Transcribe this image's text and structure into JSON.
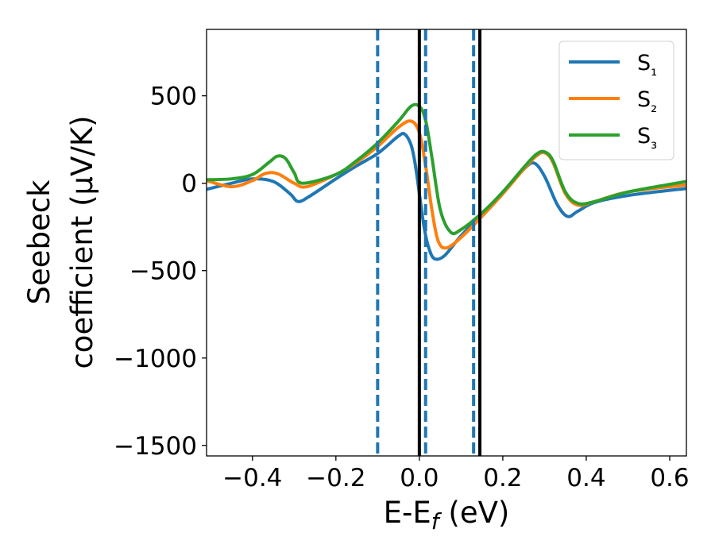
{
  "chart_data": {
    "type": "line",
    "xlabel": "E-E_f (eV)",
    "ylabel": "Seebeck coefficient (μV/K)",
    "ylabel_lines": [
      "Seebeck",
      "coefficient (μV/K)"
    ],
    "xlim": [
      -0.51,
      0.64
    ],
    "ylim": [
      -1560,
      880
    ],
    "xticks": [
      -0.4,
      -0.2,
      0.0,
      0.2,
      0.4,
      0.6
    ],
    "xtick_labels": [
      "−0.4",
      "−0.2",
      "0.0",
      "0.2",
      "0.4",
      "0.6"
    ],
    "yticks": [
      500,
      0,
      -500,
      -1000,
      -1500
    ],
    "ytick_labels": [
      "500",
      "0",
      "−500",
      "−1000",
      "−1500"
    ],
    "grid": false,
    "legend_position": "top-right",
    "series": [
      {
        "name": "S₁",
        "color": "#1f77b4",
        "x": [
          -0.51,
          -0.45,
          -0.4,
          -0.35,
          -0.31,
          -0.29,
          -0.26,
          -0.2,
          -0.15,
          -0.1,
          -0.05,
          -0.035,
          -0.02,
          -0.01,
          0.0,
          0.01,
          0.02,
          0.035,
          0.06,
          0.1,
          0.15,
          0.2,
          0.25,
          0.275,
          0.3,
          0.33,
          0.355,
          0.38,
          0.42,
          0.5,
          0.64
        ],
        "y": [
          -35,
          0,
          25,
          10,
          -60,
          -105,
          -70,
          25,
          100,
          170,
          270,
          280,
          220,
          110,
          -60,
          -230,
          -350,
          -430,
          -415,
          -300,
          -180,
          -50,
          80,
          115,
          40,
          -120,
          -190,
          -160,
          -110,
          -70,
          -30
        ]
      },
      {
        "name": "S₂",
        "color": "#ff7f0e",
        "x": [
          -0.51,
          -0.45,
          -0.4,
          -0.37,
          -0.34,
          -0.3,
          -0.27,
          -0.2,
          -0.15,
          -0.1,
          -0.05,
          -0.02,
          0.0,
          0.015,
          0.03,
          0.045,
          0.065,
          0.1,
          0.15,
          0.2,
          0.25,
          0.28,
          0.3,
          0.32,
          0.35,
          0.38,
          0.42,
          0.5,
          0.64
        ],
        "y": [
          15,
          -20,
          15,
          55,
          55,
          0,
          -20,
          50,
          120,
          210,
          320,
          355,
          290,
          100,
          -150,
          -330,
          -370,
          -310,
          -190,
          -60,
          80,
          155,
          175,
          120,
          -60,
          -125,
          -105,
          -50,
          -10
        ]
      },
      {
        "name": "S₃",
        "color": "#2ca02c",
        "x": [
          -0.51,
          -0.45,
          -0.4,
          -0.36,
          -0.34,
          -0.32,
          -0.3,
          -0.28,
          -0.2,
          -0.15,
          -0.1,
          -0.05,
          -0.02,
          0.0,
          0.015,
          0.03,
          0.05,
          0.075,
          0.1,
          0.15,
          0.2,
          0.25,
          0.28,
          0.3,
          0.32,
          0.35,
          0.38,
          0.42,
          0.5,
          0.64
        ],
        "y": [
          20,
          25,
          50,
          120,
          155,
          140,
          60,
          0,
          50,
          130,
          230,
          355,
          440,
          440,
          360,
          150,
          -150,
          -280,
          -265,
          -170,
          -50,
          90,
          165,
          180,
          130,
          -50,
          -115,
          -105,
          -50,
          10
        ]
      }
    ],
    "vertical_lines": [
      {
        "x": -0.1,
        "style": "dashed",
        "color": "#1f77b4"
      },
      {
        "x": 0.015,
        "style": "dashed",
        "color": "#1f77b4"
      },
      {
        "x": 0.13,
        "style": "dashed",
        "color": "#1f77b4"
      },
      {
        "x": 0.0,
        "style": "solid",
        "color": "#000000"
      },
      {
        "x": 0.145,
        "style": "solid",
        "color": "#000000"
      }
    ]
  }
}
